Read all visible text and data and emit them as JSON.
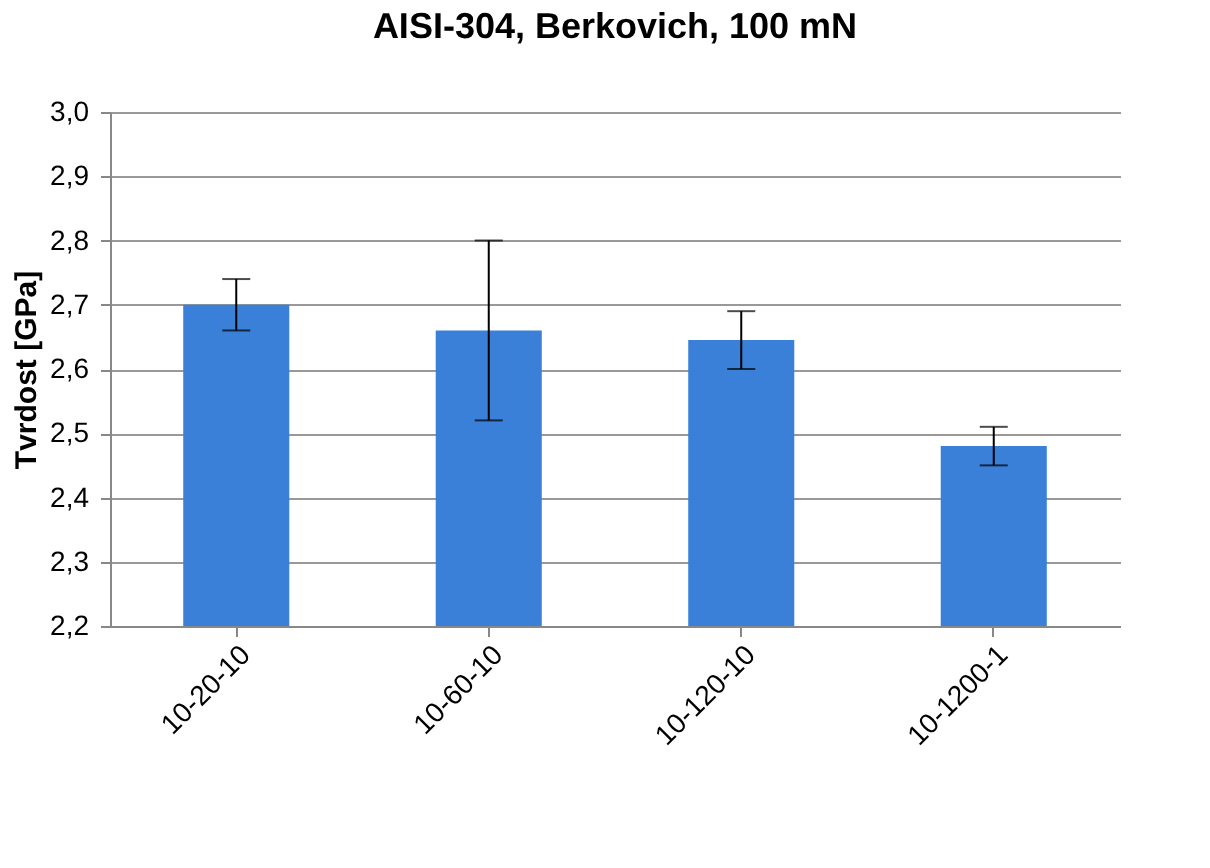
{
  "chart_data": {
    "type": "bar",
    "title": "AISI-304, Berkovich, 100 mN",
    "ylabel": "Tvrdost [GPa]",
    "categories": [
      "10-20-10",
      "10-60-10",
      "10-120-10",
      "10-1200-1"
    ],
    "values": [
      2.7,
      2.66,
      2.645,
      2.48
    ],
    "errors": [
      0.04,
      0.14,
      0.045,
      0.03
    ],
    "color": "#3a80d8",
    "ylim": [
      2.2,
      3.0
    ],
    "yticks": [
      {
        "value": 2.2,
        "label": "2,2"
      },
      {
        "value": 2.3,
        "label": "2,3"
      },
      {
        "value": 2.4,
        "label": "2,4"
      },
      {
        "value": 2.5,
        "label": "2,5"
      },
      {
        "value": 2.6,
        "label": "2,6"
      },
      {
        "value": 2.7,
        "label": "2,7"
      },
      {
        "value": 2.8,
        "label": "2,8"
      },
      {
        "value": 2.9,
        "label": "2,9"
      },
      {
        "value": 3.0,
        "label": "3,0"
      }
    ],
    "grid": "y"
  }
}
